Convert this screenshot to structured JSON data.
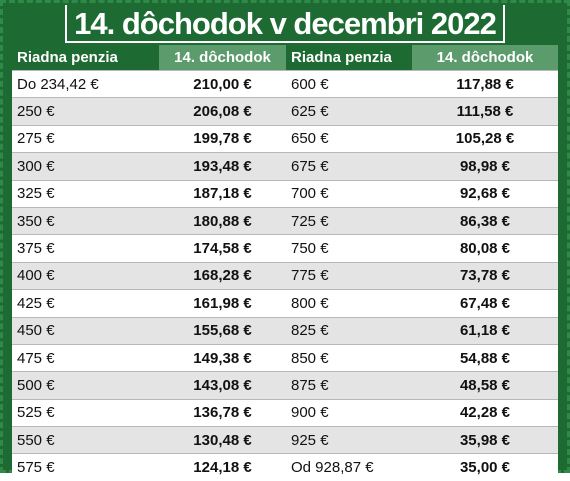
{
  "title": "14. dôchodok v decembri 2022",
  "table": {
    "header": [
      "Riadna penzia",
      "14. dôchodok",
      "Riadna penzia",
      "14. dôchodok"
    ],
    "rows": [
      [
        "Do 234,42 €",
        "210,00 €",
        "600 €",
        "117,88 €"
      ],
      [
        "250 €",
        "206,08 €",
        "625 €",
        "111,58 €"
      ],
      [
        "275 €",
        "199,78 €",
        "650 €",
        "105,28 €"
      ],
      [
        "300 €",
        "193,48 €",
        "675 €",
        "98,98 €"
      ],
      [
        "325 €",
        "187,18 €",
        "700 €",
        "92,68 €"
      ],
      [
        "350 €",
        "180,88 €",
        "725 €",
        "86,38 €"
      ],
      [
        "375 €",
        "174,58 €",
        "750 €",
        "80,08 €"
      ],
      [
        "400 €",
        "168,28 €",
        "775 €",
        "73,78 €"
      ],
      [
        "425 €",
        "161,98 €",
        "800 €",
        "67,48 €"
      ],
      [
        "450 €",
        "155,68 €",
        "825 €",
        "61,18 €"
      ],
      [
        "475 €",
        "149,38 €",
        "850 €",
        "54,88 €"
      ],
      [
        "500 €",
        "143,08 €",
        "875 €",
        "48,58 €"
      ],
      [
        "525 €",
        "136,78 €",
        "900 €",
        "42,28 €"
      ],
      [
        "550 €",
        "130,48 €",
        "925 €",
        "35,98 €"
      ],
      [
        "575 €",
        "124,18 €",
        "Od 928,87 €",
        "35,00 €"
      ]
    ]
  }
}
